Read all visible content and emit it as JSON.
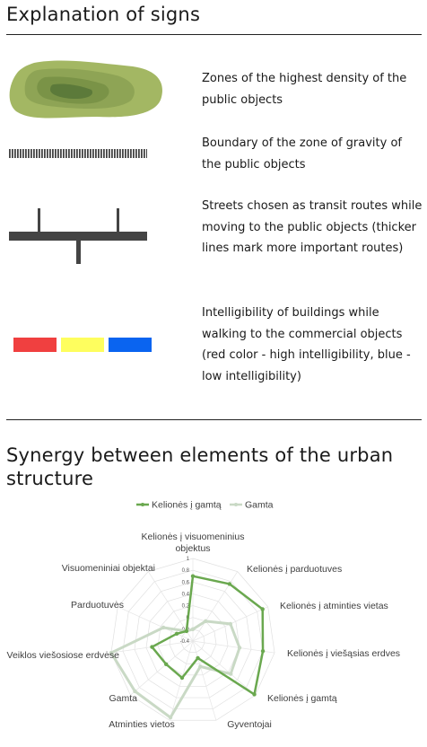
{
  "section1": {
    "title": "Explanation of signs",
    "items": [
      {
        "text": "Zones of the highest density of the public objects"
      },
      {
        "text": "Boundary of the zone of gravity of the public objects"
      },
      {
        "text": "Streets chosen as transit routes while moving to the public objects (thicker lines mark more important routes)"
      },
      {
        "text": "Intelligibility of buildings while walking to the commercial objects (red color - high intelligibility, blue - low intelligibility)"
      }
    ],
    "colors": {
      "zone_dark": "#5c7a3a",
      "zone_light": "#a3b763",
      "street": "#444444",
      "red": "#f04040",
      "yellow": "#fefe5e",
      "blue": "#0a64f0"
    }
  },
  "section2": {
    "title": "Synergy between elements of the urban structure"
  },
  "chart_data": {
    "type": "radar",
    "title": "",
    "categories": [
      "Kelionės į visuomeninius objektus",
      "Kelionės į parduotuves",
      "Kelionės į atminties vietas",
      "Kelionės į viešąsias erdves",
      "Kelionės į gamtą",
      "Gyventojai",
      "Atminties vietos",
      "Gamta",
      "Veiklos viešosiose erdvėse",
      "Parduotuvės",
      "Visuomeniniai objektai"
    ],
    "ticks": [
      "1",
      "0.8",
      "0.6",
      "0.4",
      "0.2",
      "0",
      "-0.2",
      "-0.4"
    ],
    "rlim": [
      -0.4,
      1
    ],
    "legend_position": "top",
    "series": [
      {
        "name": "Kelionės į gamtą",
        "color": "#6aa84f",
        "values": [
          0.7,
          0.75,
          0.9,
          0.8,
          0.98,
          -0.1,
          0.25,
          0.2,
          0.3,
          -0.1,
          -0.2
        ]
      },
      {
        "name": "Gamta",
        "color": "#c9d9c5",
        "values": [
          -0.2,
          0.0,
          0.3,
          0.4,
          0.45,
          0.05,
          0.95,
          0.9,
          1.0,
          0.15,
          -0.2
        ]
      }
    ]
  }
}
